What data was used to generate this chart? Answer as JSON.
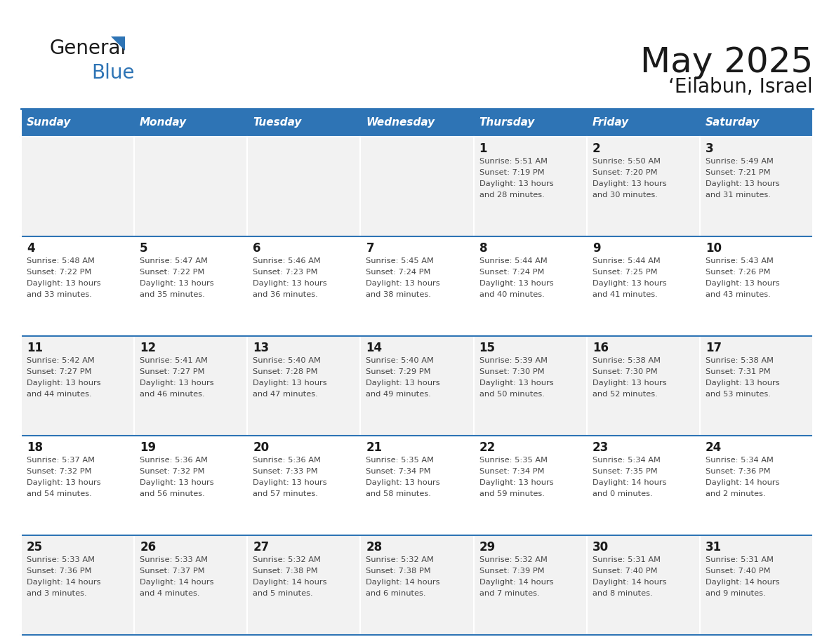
{
  "title": "May 2025",
  "subtitle": "‘Eilabun, Israel",
  "days_of_week": [
    "Sunday",
    "Monday",
    "Tuesday",
    "Wednesday",
    "Thursday",
    "Friday",
    "Saturday"
  ],
  "header_bg": "#2E74B5",
  "header_text": "#FFFFFF",
  "row_bg_odd": "#F2F2F2",
  "row_bg_even": "#FFFFFF",
  "text_color": "#444444",
  "day_num_color": "#1a1a1a",
  "grid_color": "#2E74B5",
  "logo_text_color": "#1a1a1a",
  "logo_blue_color": "#2E74B5",
  "title_color": "#1a1a1a",
  "calendar": [
    [
      null,
      null,
      null,
      null,
      {
        "day": 1,
        "sunrise": "5:51 AM",
        "sunset": "7:19 PM",
        "daylight": "13 hours",
        "daylight2": "and 28 minutes."
      },
      {
        "day": 2,
        "sunrise": "5:50 AM",
        "sunset": "7:20 PM",
        "daylight": "13 hours",
        "daylight2": "and 30 minutes."
      },
      {
        "day": 3,
        "sunrise": "5:49 AM",
        "sunset": "7:21 PM",
        "daylight": "13 hours",
        "daylight2": "and 31 minutes."
      }
    ],
    [
      {
        "day": 4,
        "sunrise": "5:48 AM",
        "sunset": "7:22 PM",
        "daylight": "13 hours",
        "daylight2": "and 33 minutes."
      },
      {
        "day": 5,
        "sunrise": "5:47 AM",
        "sunset": "7:22 PM",
        "daylight": "13 hours",
        "daylight2": "and 35 minutes."
      },
      {
        "day": 6,
        "sunrise": "5:46 AM",
        "sunset": "7:23 PM",
        "daylight": "13 hours",
        "daylight2": "and 36 minutes."
      },
      {
        "day": 7,
        "sunrise": "5:45 AM",
        "sunset": "7:24 PM",
        "daylight": "13 hours",
        "daylight2": "and 38 minutes."
      },
      {
        "day": 8,
        "sunrise": "5:44 AM",
        "sunset": "7:24 PM",
        "daylight": "13 hours",
        "daylight2": "and 40 minutes."
      },
      {
        "day": 9,
        "sunrise": "5:44 AM",
        "sunset": "7:25 PM",
        "daylight": "13 hours",
        "daylight2": "and 41 minutes."
      },
      {
        "day": 10,
        "sunrise": "5:43 AM",
        "sunset": "7:26 PM",
        "daylight": "13 hours",
        "daylight2": "and 43 minutes."
      }
    ],
    [
      {
        "day": 11,
        "sunrise": "5:42 AM",
        "sunset": "7:27 PM",
        "daylight": "13 hours",
        "daylight2": "and 44 minutes."
      },
      {
        "day": 12,
        "sunrise": "5:41 AM",
        "sunset": "7:27 PM",
        "daylight": "13 hours",
        "daylight2": "and 46 minutes."
      },
      {
        "day": 13,
        "sunrise": "5:40 AM",
        "sunset": "7:28 PM",
        "daylight": "13 hours",
        "daylight2": "and 47 minutes."
      },
      {
        "day": 14,
        "sunrise": "5:40 AM",
        "sunset": "7:29 PM",
        "daylight": "13 hours",
        "daylight2": "and 49 minutes."
      },
      {
        "day": 15,
        "sunrise": "5:39 AM",
        "sunset": "7:30 PM",
        "daylight": "13 hours",
        "daylight2": "and 50 minutes."
      },
      {
        "day": 16,
        "sunrise": "5:38 AM",
        "sunset": "7:30 PM",
        "daylight": "13 hours",
        "daylight2": "and 52 minutes."
      },
      {
        "day": 17,
        "sunrise": "5:38 AM",
        "sunset": "7:31 PM",
        "daylight": "13 hours",
        "daylight2": "and 53 minutes."
      }
    ],
    [
      {
        "day": 18,
        "sunrise": "5:37 AM",
        "sunset": "7:32 PM",
        "daylight": "13 hours",
        "daylight2": "and 54 minutes."
      },
      {
        "day": 19,
        "sunrise": "5:36 AM",
        "sunset": "7:32 PM",
        "daylight": "13 hours",
        "daylight2": "and 56 minutes."
      },
      {
        "day": 20,
        "sunrise": "5:36 AM",
        "sunset": "7:33 PM",
        "daylight": "13 hours",
        "daylight2": "and 57 minutes."
      },
      {
        "day": 21,
        "sunrise": "5:35 AM",
        "sunset": "7:34 PM",
        "daylight": "13 hours",
        "daylight2": "and 58 minutes."
      },
      {
        "day": 22,
        "sunrise": "5:35 AM",
        "sunset": "7:34 PM",
        "daylight": "13 hours",
        "daylight2": "and 59 minutes."
      },
      {
        "day": 23,
        "sunrise": "5:34 AM",
        "sunset": "7:35 PM",
        "daylight": "14 hours",
        "daylight2": "and 0 minutes."
      },
      {
        "day": 24,
        "sunrise": "5:34 AM",
        "sunset": "7:36 PM",
        "daylight": "14 hours",
        "daylight2": "and 2 minutes."
      }
    ],
    [
      {
        "day": 25,
        "sunrise": "5:33 AM",
        "sunset": "7:36 PM",
        "daylight": "14 hours",
        "daylight2": "and 3 minutes."
      },
      {
        "day": 26,
        "sunrise": "5:33 AM",
        "sunset": "7:37 PM",
        "daylight": "14 hours",
        "daylight2": "and 4 minutes."
      },
      {
        "day": 27,
        "sunrise": "5:32 AM",
        "sunset": "7:38 PM",
        "daylight": "14 hours",
        "daylight2": "and 5 minutes."
      },
      {
        "day": 28,
        "sunrise": "5:32 AM",
        "sunset": "7:38 PM",
        "daylight": "14 hours",
        "daylight2": "and 6 minutes."
      },
      {
        "day": 29,
        "sunrise": "5:32 AM",
        "sunset": "7:39 PM",
        "daylight": "14 hours",
        "daylight2": "and 7 minutes."
      },
      {
        "day": 30,
        "sunrise": "5:31 AM",
        "sunset": "7:40 PM",
        "daylight": "14 hours",
        "daylight2": "and 8 minutes."
      },
      {
        "day": 31,
        "sunrise": "5:31 AM",
        "sunset": "7:40 PM",
        "daylight": "14 hours",
        "daylight2": "and 9 minutes."
      }
    ]
  ]
}
